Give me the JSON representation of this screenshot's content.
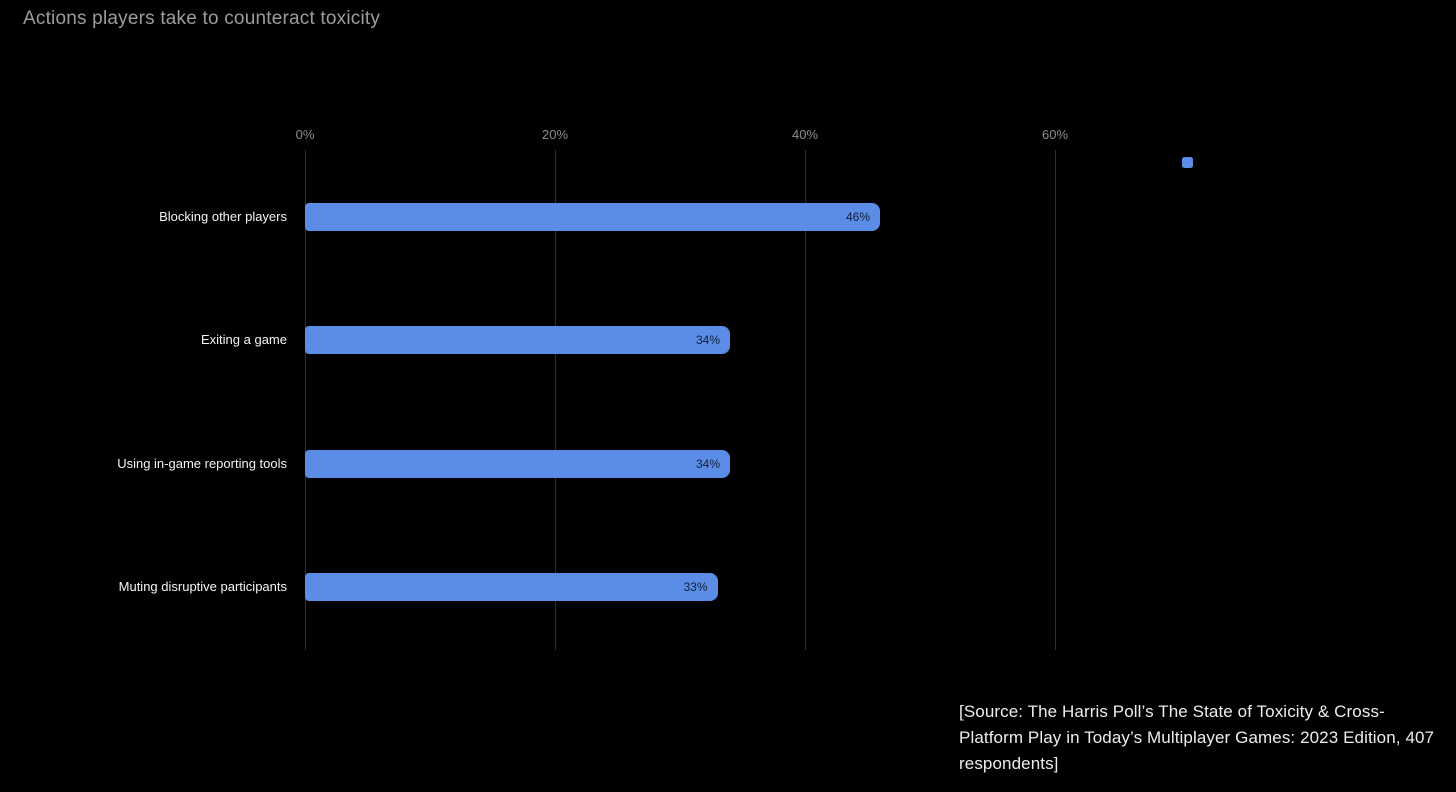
{
  "chart": {
    "title": "Actions players take to counteract toxicity"
  },
  "chart_data": {
    "type": "bar",
    "orientation": "horizontal",
    "title": "Actions players take to counteract toxicity",
    "categories": [
      "Blocking other players",
      "Exiting a game",
      "Using in-game reporting tools",
      "Muting disruptive participants"
    ],
    "values": [
      46,
      34,
      34,
      33
    ],
    "value_labels": [
      "46%",
      "34%",
      "34%",
      "33%"
    ],
    "xlabel": "",
    "ylabel": "",
    "xlim": [
      0,
      60
    ],
    "x_ticks": [
      {
        "value": 0,
        "label": "0%"
      },
      {
        "value": 20,
        "label": "20%"
      },
      {
        "value": 40,
        "label": "40%"
      },
      {
        "value": 60,
        "label": "60%"
      }
    ],
    "grid": true,
    "legend_position": "top-right",
    "colors": {
      "background": "#000000",
      "bar": "#5c8de6",
      "bar_value_text": "#0e2038",
      "gridline": "#2e2e2e",
      "tick_text": "#8d8d8d",
      "category_text": "#f4f4f4",
      "title_text": "#9c9c9c"
    }
  },
  "legend": {
    "swatch_color": "#5c8de6"
  },
  "source": {
    "text": "[Source: The Harris Poll’s The State of Toxicity & Cross-Platform Play in Today’s Multiplayer Games: 2023 Edition, 407 respondents]"
  }
}
